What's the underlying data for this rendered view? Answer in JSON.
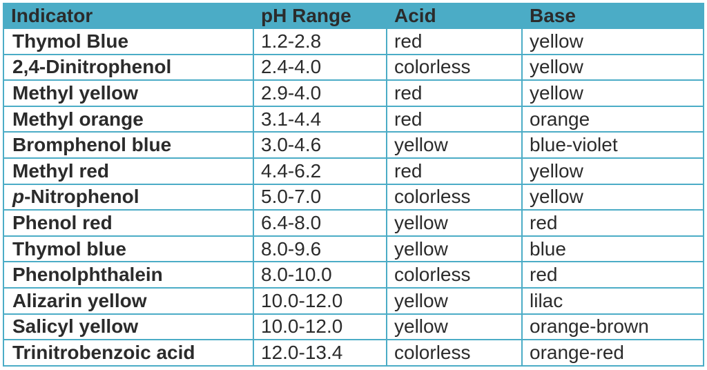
{
  "table": {
    "headers": [
      "Indicator",
      "pH Range",
      "Acid",
      "Base"
    ],
    "rows": [
      {
        "indicator_prefix": "",
        "indicator": "Thymol Blue",
        "range": "1.2-2.8",
        "acid": "red",
        "base": "yellow"
      },
      {
        "indicator_prefix": "",
        "indicator": "2,4-Dinitrophenol",
        "range": "2.4-4.0",
        "acid": "colorless",
        "base": "yellow"
      },
      {
        "indicator_prefix": "",
        "indicator": "Methyl yellow",
        "range": "2.9-4.0",
        "acid": "red",
        "base": "yellow"
      },
      {
        "indicator_prefix": "",
        "indicator": "Methyl orange",
        "range": "3.1-4.4",
        "acid": "red",
        "base": "orange"
      },
      {
        "indicator_prefix": "",
        "indicator": "Bromphenol blue",
        "range": "3.0-4.6",
        "acid": "yellow",
        "base": "blue-violet"
      },
      {
        "indicator_prefix": "",
        "indicator": "Methyl red",
        "range": "4.4-6.2",
        "acid": "red",
        "base": "yellow"
      },
      {
        "indicator_prefix": "p",
        "indicator": "-Nitrophenol",
        "range": "5.0-7.0",
        "acid": "colorless",
        "base": "yellow"
      },
      {
        "indicator_prefix": "",
        "indicator": "Phenol red",
        "range": "6.4-8.0",
        "acid": "yellow",
        "base": "red"
      },
      {
        "indicator_prefix": "",
        "indicator": "Thymol blue",
        "range": "8.0-9.6",
        "acid": "yellow",
        "base": "blue"
      },
      {
        "indicator_prefix": "",
        "indicator": "Phenolphthalein",
        "range": "8.0-10.0",
        "acid": "colorless",
        "base": "red"
      },
      {
        "indicator_prefix": "",
        "indicator": "Alizarin yellow",
        "range": "10.0-12.0",
        "acid": "yellow",
        "base": "lilac"
      },
      {
        "indicator_prefix": "",
        "indicator": "Salicyl yellow",
        "range": "10.0-12.0",
        "acid": "yellow",
        "base": "orange-brown"
      },
      {
        "indicator_prefix": "",
        "indicator": "Trinitrobenzoic acid",
        "range": "12.0-13.4",
        "acid": "colorless",
        "base": "orange-red"
      }
    ]
  },
  "colors": {
    "header_background": "#4bacc6",
    "border": "#4bacc6",
    "text": "#2b2b2b"
  }
}
